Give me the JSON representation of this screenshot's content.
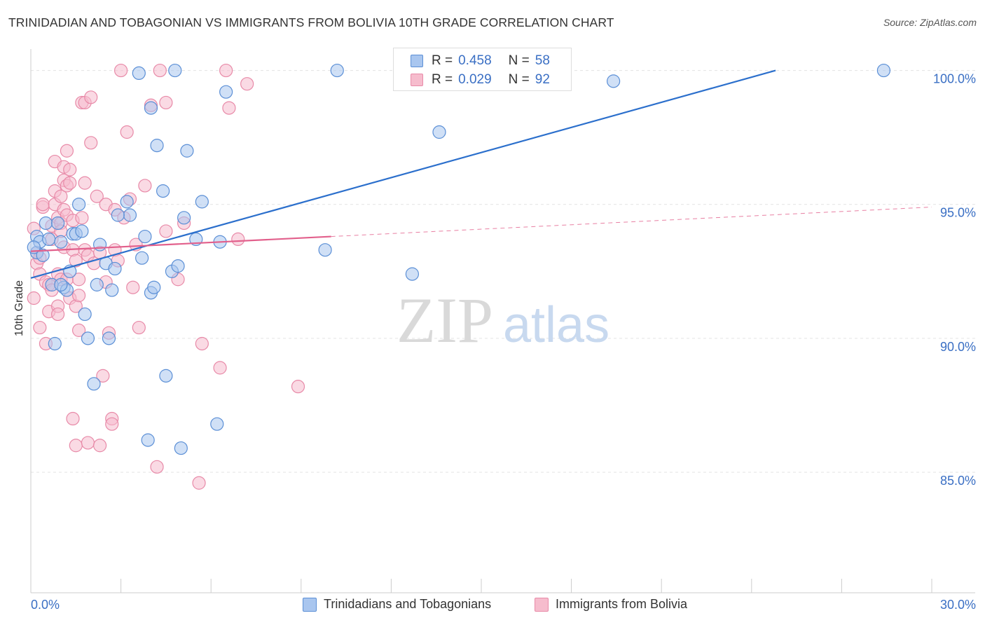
{
  "title": "TRINIDADIAN AND TOBAGONIAN VS IMMIGRANTS FROM BOLIVIA 10TH GRADE CORRELATION CHART",
  "source": "Source: ZipAtlas.com",
  "watermark": {
    "zip": "ZIP",
    "atlas": "atlas"
  },
  "colors": {
    "blue_fill": "#a9c6ef",
    "blue_stroke": "#5b8fd6",
    "blue_line": "#2b6fcc",
    "pink_fill": "#f6bccd",
    "pink_stroke": "#e88aa8",
    "pink_line": "#e2608c",
    "axis_text": "#3a6fc4",
    "grid": "#e3e3e3"
  },
  "legend": {
    "rows": [
      {
        "r_label": "R =",
        "r_value": "0.458",
        "n_label": "N =",
        "n_value": "58"
      },
      {
        "r_label": "R =",
        "r_value": "0.029",
        "n_label": "N =",
        "n_value": "92"
      }
    ]
  },
  "bottom_legend": [
    "Trinidadians and Tobagonians",
    "Immigrants from Bolivia"
  ],
  "chart_data": {
    "type": "scatter",
    "title": "TRINIDADIAN AND TOBAGONIAN VS IMMIGRANTS FROM BOLIVIA 10TH GRADE CORRELATION CHART",
    "xlabel": "",
    "ylabel": "10th Grade",
    "xlim": [
      0,
      30
    ],
    "ylim": [
      80.5,
      100.8
    ],
    "x_tick_labels": [
      "0.0%",
      "30.0%"
    ],
    "y_ticks": [
      85,
      90,
      95,
      100
    ],
    "y_tick_labels": [
      "85.0%",
      "90.0%",
      "95.0%",
      "100.0%"
    ],
    "grid": true,
    "legend_position": "top-center",
    "series": [
      {
        "name": "Trinidadians and Tobagonians",
        "R": 0.458,
        "N": 58,
        "trend": {
          "x": [
            0.0,
            24.8
          ],
          "y": [
            92.25,
            100.0
          ],
          "style": "solid"
        },
        "points": [
          [
            0.2,
            93.8
          ],
          [
            0.2,
            93.2
          ],
          [
            0.3,
            93.6
          ],
          [
            0.5,
            94.3
          ],
          [
            0.6,
            93.7
          ],
          [
            0.7,
            92.0
          ],
          [
            0.8,
            89.8
          ],
          [
            0.9,
            94.3
          ],
          [
            1.0,
            93.6
          ],
          [
            1.1,
            91.9
          ],
          [
            1.2,
            91.8
          ],
          [
            1.3,
            92.5
          ],
          [
            1.4,
            93.9
          ],
          [
            1.5,
            93.9
          ],
          [
            1.6,
            95.0
          ],
          [
            1.7,
            94.0
          ],
          [
            1.8,
            90.9
          ],
          [
            1.9,
            90.0
          ],
          [
            2.1,
            88.3
          ],
          [
            2.2,
            92.0
          ],
          [
            2.3,
            93.5
          ],
          [
            2.5,
            92.8
          ],
          [
            2.6,
            90.0
          ],
          [
            2.7,
            91.8
          ],
          [
            2.8,
            92.6
          ],
          [
            3.2,
            95.1
          ],
          [
            3.3,
            94.6
          ],
          [
            3.6,
            99.9
          ],
          [
            3.7,
            93.0
          ],
          [
            3.8,
            93.8
          ],
          [
            3.9,
            86.2
          ],
          [
            4.0,
            98.6
          ],
          [
            4.0,
            91.7
          ],
          [
            4.1,
            91.9
          ],
          [
            4.2,
            97.2
          ],
          [
            4.4,
            95.5
          ],
          [
            4.5,
            88.6
          ],
          [
            4.7,
            92.5
          ],
          [
            4.8,
            100.0
          ],
          [
            4.9,
            92.7
          ],
          [
            5.0,
            85.9
          ],
          [
            5.1,
            94.5
          ],
          [
            5.2,
            97.0
          ],
          [
            5.5,
            93.7
          ],
          [
            5.7,
            95.1
          ],
          [
            6.2,
            86.8
          ],
          [
            6.3,
            93.6
          ],
          [
            6.5,
            99.2
          ],
          [
            9.8,
            93.3
          ],
          [
            10.2,
            100.0
          ],
          [
            12.7,
            92.4
          ],
          [
            13.6,
            97.7
          ],
          [
            19.4,
            99.6
          ],
          [
            28.4,
            100.0
          ],
          [
            0.1,
            93.4
          ],
          [
            0.4,
            93.1
          ],
          [
            1.0,
            92.0
          ],
          [
            2.9,
            94.6
          ]
        ]
      },
      {
        "name": "Immigrants from Bolivia",
        "R": 0.029,
        "N": 92,
        "trend": {
          "x": [
            0.0,
            10.0
          ],
          "y": [
            93.25,
            93.8
          ],
          "style": "solid",
          "extension": {
            "x": [
              10.0,
              30.0
            ],
            "y": [
              93.8,
              94.9
            ],
            "style": "dashed"
          }
        },
        "points": [
          [
            0.1,
            94.1
          ],
          [
            0.1,
            91.5
          ],
          [
            0.2,
            92.8
          ],
          [
            0.2,
            93.2
          ],
          [
            0.3,
            92.4
          ],
          [
            0.3,
            90.4
          ],
          [
            0.4,
            94.9
          ],
          [
            0.4,
            95.0
          ],
          [
            0.5,
            92.1
          ],
          [
            0.5,
            89.8
          ],
          [
            0.6,
            92.0
          ],
          [
            0.6,
            91.0
          ],
          [
            0.7,
            94.2
          ],
          [
            0.7,
            93.7
          ],
          [
            0.7,
            91.8
          ],
          [
            0.8,
            96.6
          ],
          [
            0.8,
            95.5
          ],
          [
            0.8,
            95.0
          ],
          [
            0.9,
            94.5
          ],
          [
            0.9,
            92.4
          ],
          [
            0.9,
            91.2
          ],
          [
            0.9,
            90.9
          ],
          [
            1.0,
            95.3
          ],
          [
            1.0,
            94.3
          ],
          [
            1.0,
            94.0
          ],
          [
            1.0,
            92.2
          ],
          [
            1.1,
            96.4
          ],
          [
            1.1,
            95.9
          ],
          [
            1.1,
            94.8
          ],
          [
            1.1,
            93.4
          ],
          [
            1.2,
            97.0
          ],
          [
            1.2,
            95.7
          ],
          [
            1.2,
            94.6
          ],
          [
            1.2,
            92.2
          ],
          [
            1.3,
            96.3
          ],
          [
            1.3,
            95.8
          ],
          [
            1.3,
            91.5
          ],
          [
            1.4,
            94.4
          ],
          [
            1.4,
            93.3
          ],
          [
            1.4,
            87.0
          ],
          [
            1.5,
            92.9
          ],
          [
            1.5,
            91.2
          ],
          [
            1.5,
            86.0
          ],
          [
            1.6,
            92.2
          ],
          [
            1.6,
            91.6
          ],
          [
            1.6,
            90.3
          ],
          [
            1.7,
            98.8
          ],
          [
            1.7,
            94.5
          ],
          [
            1.8,
            98.8
          ],
          [
            1.8,
            95.8
          ],
          [
            1.8,
            93.3
          ],
          [
            1.9,
            93.1
          ],
          [
            1.9,
            86.1
          ],
          [
            2.0,
            99.0
          ],
          [
            2.0,
            97.3
          ],
          [
            2.1,
            92.8
          ],
          [
            2.2,
            95.3
          ],
          [
            2.3,
            93.2
          ],
          [
            2.3,
            86.0
          ],
          [
            2.4,
            88.6
          ],
          [
            2.5,
            95.0
          ],
          [
            2.5,
            92.1
          ],
          [
            2.6,
            90.2
          ],
          [
            2.7,
            87.0
          ],
          [
            2.7,
            86.8
          ],
          [
            2.8,
            94.8
          ],
          [
            2.8,
            93.3
          ],
          [
            2.9,
            92.9
          ],
          [
            3.0,
            100.0
          ],
          [
            3.1,
            94.5
          ],
          [
            3.2,
            97.7
          ],
          [
            3.3,
            95.2
          ],
          [
            3.4,
            91.9
          ],
          [
            3.5,
            93.5
          ],
          [
            3.6,
            90.4
          ],
          [
            3.8,
            95.7
          ],
          [
            4.0,
            98.7
          ],
          [
            4.2,
            85.2
          ],
          [
            4.3,
            100.0
          ],
          [
            4.5,
            98.8
          ],
          [
            4.5,
            94.0
          ],
          [
            4.9,
            92.2
          ],
          [
            5.1,
            94.3
          ],
          [
            5.6,
            84.6
          ],
          [
            5.7,
            89.8
          ],
          [
            6.3,
            88.9
          ],
          [
            6.5,
            100.0
          ],
          [
            6.6,
            98.6
          ],
          [
            6.9,
            93.7
          ],
          [
            7.2,
            99.5
          ],
          [
            8.9,
            88.2
          ],
          [
            0.3,
            93.0
          ]
        ]
      }
    ]
  }
}
